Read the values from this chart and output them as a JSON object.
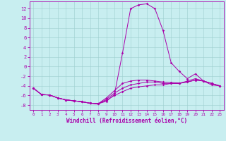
{
  "xlabel": "Windchill (Refroidissement éolien,°C)",
  "background_color": "#c8eef0",
  "grid_color": "#9ecfcf",
  "line_color": "#aa00aa",
  "x_ticks": [
    0,
    1,
    2,
    3,
    4,
    5,
    6,
    7,
    8,
    9,
    10,
    11,
    12,
    13,
    14,
    15,
    16,
    17,
    18,
    19,
    20,
    21,
    22,
    23
  ],
  "y_ticks": [
    -8,
    -6,
    -4,
    -2,
    0,
    2,
    4,
    6,
    8,
    10,
    12
  ],
  "ylim": [
    -9.0,
    13.5
  ],
  "xlim": [
    -0.5,
    23.5
  ],
  "series": [
    [
      [
        0,
        -4.5
      ],
      [
        1,
        -5.8
      ],
      [
        2,
        -5.9
      ],
      [
        3,
        -6.5
      ],
      [
        4,
        -6.9
      ],
      [
        5,
        -7.1
      ],
      [
        6,
        -7.3
      ],
      [
        7,
        -7.6
      ],
      [
        8,
        -7.7
      ],
      [
        9,
        -7.2
      ],
      [
        10,
        -5.8
      ],
      [
        11,
        2.8
      ],
      [
        12,
        12.0
      ],
      [
        13,
        12.8
      ],
      [
        14,
        13.0
      ],
      [
        15,
        12.0
      ],
      [
        16,
        7.5
      ],
      [
        17,
        0.8
      ],
      [
        18,
        -1.0
      ],
      [
        19,
        -2.5
      ],
      [
        20,
        -1.5
      ],
      [
        21,
        -3.0
      ],
      [
        22,
        -3.8
      ],
      [
        23,
        -4.0
      ]
    ],
    [
      [
        0,
        -4.5
      ],
      [
        1,
        -5.8
      ],
      [
        2,
        -5.9
      ],
      [
        3,
        -6.5
      ],
      [
        4,
        -6.9
      ],
      [
        5,
        -7.1
      ],
      [
        6,
        -7.3
      ],
      [
        7,
        -7.6
      ],
      [
        8,
        -7.7
      ],
      [
        9,
        -7.0
      ],
      [
        10,
        -6.0
      ],
      [
        11,
        -5.2
      ],
      [
        12,
        -4.5
      ],
      [
        13,
        -4.2
      ],
      [
        14,
        -4.0
      ],
      [
        15,
        -3.8
      ],
      [
        16,
        -3.8
      ],
      [
        17,
        -3.5
      ],
      [
        18,
        -3.5
      ],
      [
        19,
        -3.0
      ],
      [
        20,
        -2.5
      ],
      [
        21,
        -3.0
      ],
      [
        22,
        -3.5
      ],
      [
        23,
        -4.0
      ]
    ],
    [
      [
        0,
        -4.5
      ],
      [
        1,
        -5.8
      ],
      [
        2,
        -5.9
      ],
      [
        3,
        -6.5
      ],
      [
        4,
        -6.9
      ],
      [
        5,
        -7.1
      ],
      [
        6,
        -7.3
      ],
      [
        7,
        -7.6
      ],
      [
        8,
        -7.7
      ],
      [
        9,
        -6.8
      ],
      [
        10,
        -5.5
      ],
      [
        11,
        -4.5
      ],
      [
        12,
        -3.8
      ],
      [
        13,
        -3.5
      ],
      [
        14,
        -3.2
      ],
      [
        15,
        -3.2
      ],
      [
        16,
        -3.5
      ],
      [
        17,
        -3.5
      ],
      [
        18,
        -3.5
      ],
      [
        19,
        -3.2
      ],
      [
        20,
        -2.8
      ],
      [
        21,
        -3.0
      ],
      [
        22,
        -3.5
      ],
      [
        23,
        -4.0
      ]
    ],
    [
      [
        0,
        -4.5
      ],
      [
        1,
        -5.8
      ],
      [
        2,
        -5.9
      ],
      [
        3,
        -6.5
      ],
      [
        4,
        -6.9
      ],
      [
        5,
        -7.1
      ],
      [
        6,
        -7.3
      ],
      [
        7,
        -7.6
      ],
      [
        8,
        -7.7
      ],
      [
        9,
        -6.5
      ],
      [
        10,
        -5.0
      ],
      [
        11,
        -3.5
      ],
      [
        12,
        -3.0
      ],
      [
        13,
        -2.8
      ],
      [
        14,
        -2.8
      ],
      [
        15,
        -3.0
      ],
      [
        16,
        -3.2
      ],
      [
        17,
        -3.3
      ],
      [
        18,
        -3.4
      ],
      [
        19,
        -3.2
      ],
      [
        20,
        -2.8
      ],
      [
        21,
        -3.0
      ],
      [
        22,
        -3.5
      ],
      [
        23,
        -4.0
      ]
    ]
  ]
}
